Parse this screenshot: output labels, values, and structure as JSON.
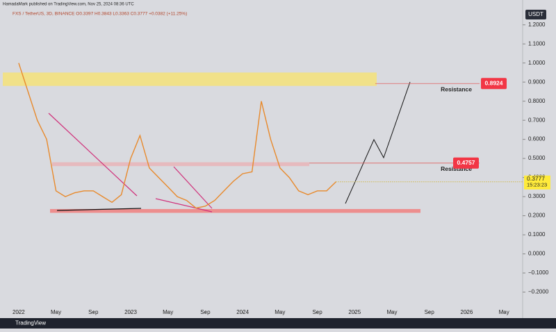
{
  "chart_data": {
    "type": "line",
    "title": "HamadaMark published on TradingView.com, Nov 25, 2024 08:36 UTC",
    "subtitle": "FXS / TetherUS, 3D, BINANCE  O0.3397  H0.3843  L0.3363  C0.3777  +0.0382 (+11.25%)",
    "currency": "USDT",
    "brand": "TradingView",
    "color": "#e8892b",
    "x": [
      "2022-01",
      "2022-02",
      "2022-03",
      "2022-04",
      "2022-05",
      "2022-06",
      "2022-07",
      "2022-08",
      "2022-09",
      "2022-10",
      "2022-11",
      "2022-12",
      "2023-01",
      "2023-02",
      "2023-03",
      "2023-04",
      "2023-05",
      "2023-06",
      "2023-07",
      "2023-08",
      "2023-09",
      "2023-10",
      "2023-11",
      "2023-12",
      "2024-01",
      "2024-02",
      "2024-03",
      "2024-04",
      "2024-05",
      "2024-06",
      "2024-07",
      "2024-08",
      "2024-09",
      "2024-10",
      "2024-11"
    ],
    "values": [
      1.0,
      0.85,
      0.7,
      0.6,
      0.33,
      0.3,
      0.32,
      0.33,
      0.33,
      0.3,
      0.27,
      0.31,
      0.5,
      0.62,
      0.45,
      0.4,
      0.35,
      0.3,
      0.28,
      0.24,
      0.25,
      0.28,
      0.33,
      0.38,
      0.42,
      0.43,
      0.8,
      0.6,
      0.45,
      0.4,
      0.33,
      0.31,
      0.33,
      0.33,
      0.3777
    ],
    "last_price": 0.3777,
    "countdown": "15:23:23",
    "xlim": [
      "2021-11",
      "2026-07"
    ],
    "xticks": [
      {
        "value": "2022-01",
        "label": "2022"
      },
      {
        "value": "2022-05",
        "label": "May"
      },
      {
        "value": "2022-09",
        "label": "Sep"
      },
      {
        "value": "2023-01",
        "label": "2023"
      },
      {
        "value": "2023-05",
        "label": "May"
      },
      {
        "value": "2023-09",
        "label": "Sep"
      },
      {
        "value": "2024-01",
        "label": "2024"
      },
      {
        "value": "2024-05",
        "label": "May"
      },
      {
        "value": "2024-09",
        "label": "Sep"
      },
      {
        "value": "2025-01",
        "label": "2025"
      },
      {
        "value": "2025-05",
        "label": "May"
      },
      {
        "value": "2025-09",
        "label": "Sep"
      },
      {
        "value": "2026-01",
        "label": "2026"
      },
      {
        "value": "2026-05",
        "label": "May"
      }
    ],
    "ylim": [
      -0.3,
      1.33
    ],
    "yticks": [
      {
        "value": 1.2,
        "label": "1.2000"
      },
      {
        "value": 1.1,
        "label": "1.1000"
      },
      {
        "value": 1.0,
        "label": "1.0000"
      },
      {
        "value": 0.9,
        "label": "0.9000"
      },
      {
        "value": 0.8,
        "label": "0.8000"
      },
      {
        "value": 0.7,
        "label": "0.7000"
      },
      {
        "value": 0.6,
        "label": "0.6000"
      },
      {
        "value": 0.5,
        "label": "0.5000"
      },
      {
        "value": 0.4,
        "label": "0.4000"
      },
      {
        "value": 0.3,
        "label": "0.3000"
      },
      {
        "value": 0.2,
        "label": "0.2000"
      },
      {
        "value": 0.1,
        "label": "0.1000"
      },
      {
        "value": 0,
        "label": "0.0000"
      },
      {
        "value": -0.1,
        "label": "−0.1000"
      },
      {
        "value": -0.2,
        "label": "−0.2000"
      }
    ],
    "levels": [
      {
        "label": "Resistance",
        "value": 0.8924
      },
      {
        "label": "Resistance",
        "value": 0.4757
      }
    ],
    "zones": [
      {
        "range": [
          0.88,
          0.95
        ],
        "color": "#f5e27a"
      },
      {
        "range": [
          0.46,
          0.48
        ],
        "color": "#e8b4b8"
      },
      {
        "range": [
          0.215,
          0.235
        ],
        "color": "#f08080"
      }
    ]
  }
}
